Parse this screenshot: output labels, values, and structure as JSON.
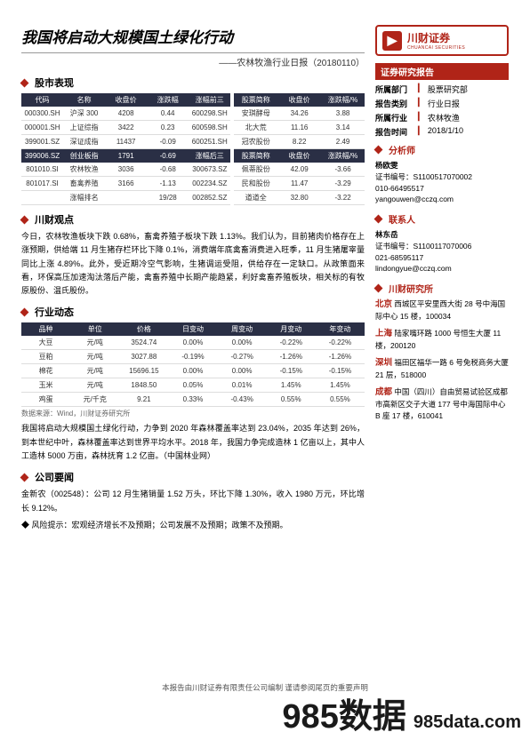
{
  "header": {
    "title": "我国将启动大规模国土绿化行动",
    "subtitle": "——农林牧渔行业日报（20180110）",
    "logo_cn": "川财证券",
    "logo_en": "CHUANCAI SECURITIES",
    "logo_mark": "▶"
  },
  "sections": {
    "market": "股市表现",
    "viewpoint": "川财观点",
    "industry": "行业动态",
    "company": "公司要闻",
    "report": "证券研究报告",
    "analyst": "分析师",
    "contact": "联系人",
    "institute": "川财研究所"
  },
  "market_left": {
    "cols": [
      "代码",
      "名称",
      "收盘价",
      "涨跌幅",
      "涨幅前三"
    ],
    "rows": [
      [
        "000300.SH",
        "沪深 300",
        "4208",
        "0.44",
        "600298.SH"
      ],
      [
        "000001.SH",
        "上证综指",
        "3422",
        "0.23",
        "600598.SH"
      ],
      [
        "399001.SZ",
        "深证成指",
        "11437",
        "-0.09",
        "600251.SH"
      ],
      [
        "399006.SZ",
        "创业板指",
        "1791",
        "-0.69",
        "涨幅后三"
      ],
      [
        "801010.SI",
        "农林牧渔",
        "3036",
        "-0.68",
        "300673.SZ"
      ],
      [
        "801017.SI",
        "畜禽养殖",
        "3166",
        "-1.13",
        "002234.SZ"
      ],
      [
        "",
        "涨幅排名",
        "",
        "19/28",
        "002852.SZ"
      ]
    ]
  },
  "market_right": {
    "cols": [
      "股票简称",
      "收盘价",
      "涨跌幅/%"
    ],
    "rows": [
      [
        "安琪酵母",
        "34.26",
        "3.88"
      ],
      [
        "北大荒",
        "11.16",
        "3.14"
      ],
      [
        "冠农股份",
        "8.22",
        "2.49"
      ],
      [
        "股票简称",
        "收盘价",
        "涨跌幅/%"
      ],
      [
        "佩蒂股份",
        "42.09",
        "-3.66"
      ],
      [
        "民和股份",
        "11.47",
        "-3.29"
      ],
      [
        "道道全",
        "32.80",
        "-3.22"
      ]
    ]
  },
  "viewpoint_text": "今日，农林牧渔板块下跌 0.68%，畜禽养殖子板块下跌 1.13%。我们认为，目前猪肉价格存在上涨预期，供给端 11 月生猪存栏环比下降 0.1%，消费端年底禽畜消费进入旺季，11 月生猪屠宰量同比上涨 4.89%。此外，受近期冷空气影响，生猪调运受阻，供给存在一定缺口。从政策面来看，环保高压加速淘汰落后产能，禽畜养殖中长期产能趋紧，利好禽畜养殖板块，相关标的有牧原股份、温氏股份。",
  "industry_table": {
    "cols": [
      "品种",
      "单位",
      "价格",
      "日变动",
      "周变动",
      "月变动",
      "年变动"
    ],
    "rows": [
      [
        "大豆",
        "元/吨",
        "3524.74",
        "0.00%",
        "0.00%",
        "-0.22%",
        "-0.22%"
      ],
      [
        "豆粕",
        "元/吨",
        "3027.88",
        "-0.19%",
        "-0.27%",
        "-1.26%",
        "-1.26%"
      ],
      [
        "棉花",
        "元/吨",
        "15696.15",
        "0.00%",
        "0.00%",
        "-0.15%",
        "-0.15%"
      ],
      [
        "玉米",
        "元/吨",
        "1848.50",
        "0.05%",
        "0.01%",
        "1.45%",
        "1.45%"
      ],
      [
        "鸡蛋",
        "元/千克",
        "9.21",
        "0.33%",
        "-0.43%",
        "0.55%",
        "0.55%"
      ]
    ],
    "source": "数据来源：Wind，川财证券研究所"
  },
  "industry_text": "我国将启动大规模国土绿化行动，力争到 2020 年森林覆盖率达到 23.04%，2035 年达到 26%，到本世纪中叶，森林覆盖率达到世界平均水平。2018 年，我国力争完成造林 1 亿亩以上，其中人工造林 5000 万亩，森林抚育 1.2 亿亩。（中国林业网）",
  "company_text": "金新农（002548）：公司 12 月生猪销量 1.52 万头，环比下降 1.30%，收入 1980 万元，环比增长 9.12%。",
  "risk_label": "风险提示：",
  "risk_text": "宏观经济增长不及预期；公司发展不及预期；政策不及预期。",
  "meta": {
    "dept_l": "所属部门",
    "dept_v": "股票研究部",
    "type_l": "报告类别",
    "type_v": "行业日报",
    "ind_l": "所属行业",
    "ind_v": "农林牧渔",
    "date_l": "报告时间",
    "date_v": "2018/1/10"
  },
  "analyst": {
    "name": "杨欧雯",
    "cert_l": "证书编号：",
    "cert": "S1100517070002",
    "tel": "010-66495517",
    "mail": "yangouwen@cczq.com"
  },
  "contact": {
    "name": "林东岳",
    "cert_l": "证书编号：",
    "cert": "S1100117070006",
    "tel": "021-68595117",
    "mail": "lindongyue@cczq.com"
  },
  "offices": {
    "bj_l": "北京",
    "bj": "西城区平安里西大街 28 号中海国际中心 15 楼，100034",
    "sh_l": "上海",
    "sh": "陆家嘴环路 1000 号恒生大厦 11 楼，200120",
    "sz_l": "深圳",
    "sz": "福田区福华一路 6 号免税商务大厦 21 层，518000",
    "cd_l": "成都",
    "cd": "中国（四川）自由贸易试验区成都市高新区交子大道 177 号中海国际中心 B 座 17 楼，610041"
  },
  "footer": "本报告由川财证券有限责任公司编制  谨请参阅尾页的重要声明",
  "watermark": {
    "a": "985数据",
    "b": "985data.com"
  }
}
